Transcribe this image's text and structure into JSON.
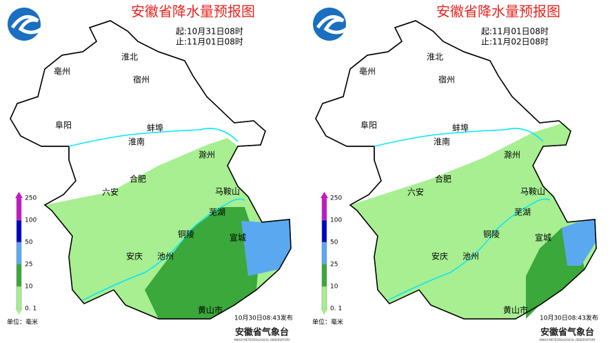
{
  "maps": [
    {
      "title": "安徽省降水量预报图",
      "period_start": "起:10月31日08时",
      "period_end": "止:11月01日08时",
      "issued": "10月30日08:43发布"
    },
    {
      "title": "安徽省降水量预报图",
      "period_start": "起:11月01日08时",
      "period_end": "止:11月02日08时",
      "issued": "10月30日08:43发布"
    }
  ],
  "cities": [
    "淮北",
    "亳州",
    "宿州",
    "阜阳",
    "蚌埠",
    "淮南",
    "滁州",
    "合肥",
    "六安",
    "马鞍山",
    "芜湖",
    "铜陵",
    "宣城",
    "安庆",
    "池州",
    "黄山市"
  ],
  "legend": {
    "labels": [
      "250",
      "100",
      "50",
      "25",
      "10",
      "0. 1"
    ],
    "unit": "单位：毫米"
  },
  "publisher": "安徽省气象台",
  "publisher_en": "ANHUI METEOROLOGICAL OBSERVATORY"
}
